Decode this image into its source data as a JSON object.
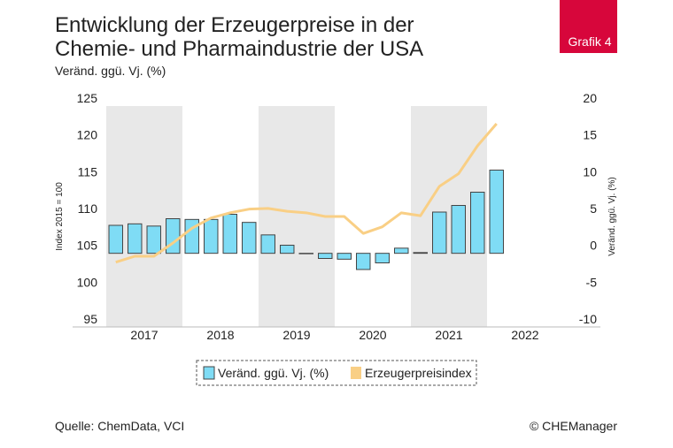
{
  "chart_data": {
    "type": "bar_line",
    "title_lines": [
      "Entwicklung der Erzeugerpreise in der",
      "Chemie- und Pharmaindustrie der USA"
    ],
    "subtitle": "Veränd. ggü. Vj. (%)",
    "badge": "Grafik 4",
    "ylabel": "Index 2015 = 100",
    "y2label": "Veränd. ggü. Vj. (%)",
    "source": "Quelle: ChemData, VCI",
    "copyright": "© CHEManager",
    "x": [
      2017.125,
      2017.375,
      2017.625,
      2017.875,
      2018.125,
      2018.375,
      2018.625,
      2018.875,
      2019.125,
      2019.375,
      2019.625,
      2019.875,
      2020.125,
      2020.375,
      2020.625,
      2020.875,
      2021.125,
      2021.375,
      2021.625,
      2021.875,
      2022.125
    ],
    "xlim": [
      2017,
      2023
    ],
    "xticks": [
      {
        "value": 2017.5,
        "label": "2017"
      },
      {
        "value": 2018.5,
        "label": "2018"
      },
      {
        "value": 2019.5,
        "label": "2019"
      },
      {
        "value": 2020.5,
        "label": "2020"
      },
      {
        "value": 2021.5,
        "label": "2021"
      },
      {
        "value": 2022.5,
        "label": "2022"
      }
    ],
    "ylim": [
      95,
      125
    ],
    "yticks": [
      95,
      100,
      105,
      110,
      115,
      120,
      125
    ],
    "y2lim": [
      -10,
      20
    ],
    "y2ticks": [
      -10,
      -5,
      0,
      5,
      10,
      15,
      20
    ],
    "series": [
      {
        "name": "Veränd. ggü. Vj. (%)",
        "type": "bar",
        "axis": "y2",
        "color": "#7fdcf5",
        "values": [
          3.8,
          4.0,
          3.7,
          4.7,
          4.6,
          4.6,
          5.3,
          4.2,
          2.5,
          1.1,
          0,
          -0.7,
          -0.8,
          -2.2,
          -1.3,
          0.7,
          0.1,
          5.6,
          6.5,
          8.3,
          11.3
        ]
      },
      {
        "name": "Erzeugerpreisindex",
        "type": "line",
        "color": "#f9cf85",
        "values": [
          103.8,
          104.6,
          104.6,
          106.4,
          108.4,
          109.8,
          110.5,
          111.0,
          111.1,
          110.7,
          110.5,
          110.0,
          110.0,
          107.7,
          108.6,
          110.5,
          110.1,
          114.1,
          115.8,
          119.6,
          122.6
        ]
      }
    ]
  }
}
